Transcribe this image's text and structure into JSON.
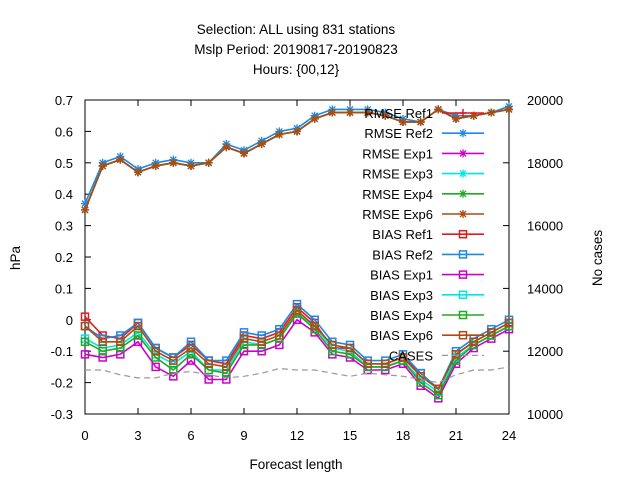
{
  "chart_data": {
    "type": "line",
    "title_lines": [
      "Selection: ALL using   831 stations",
      "Mslp   Period: 20190817-20190823",
      "Hours: {00,12}"
    ],
    "xlabel": "Forecast length",
    "ylabel": "hPa",
    "y2label": "No cases",
    "xlim": [
      0,
      24
    ],
    "ylim": [
      -0.3,
      0.7
    ],
    "y2lim": [
      10000,
      20000
    ],
    "xticks": [
      "0",
      "3",
      "6",
      "9",
      "12",
      "15",
      "18",
      "21",
      "24"
    ],
    "yticks": [
      "-0.3",
      "-0.2",
      "-0.1",
      "0",
      "0.1",
      "0.2",
      "0.3",
      "0.4",
      "0.5",
      "0.6",
      "0.7"
    ],
    "y2ticks": [
      "10000",
      "12000",
      "14000",
      "16000",
      "18000",
      "20000"
    ],
    "grid": false,
    "legend_position": "top-right",
    "x": [
      0,
      1,
      2,
      3,
      4,
      5,
      6,
      7,
      8,
      9,
      10,
      11,
      12,
      13,
      14,
      15,
      16,
      17,
      18,
      19,
      20,
      21,
      22,
      23,
      24
    ],
    "series": [
      {
        "name": "RMSE Ref1",
        "color": "#e41a1c",
        "marker": "plus",
        "axis": "y1",
        "values": [
          0.35,
          0.49,
          0.51,
          0.47,
          0.49,
          0.5,
          0.49,
          0.5,
          0.55,
          0.53,
          0.56,
          0.59,
          0.6,
          0.64,
          0.66,
          0.66,
          0.66,
          0.65,
          0.63,
          0.63,
          0.67,
          0.64,
          0.65,
          0.66,
          0.67
        ]
      },
      {
        "name": "RMSE Ref2",
        "color": "#1e88e5",
        "marker": "star",
        "axis": "y1",
        "values": [
          0.37,
          0.5,
          0.52,
          0.48,
          0.5,
          0.51,
          0.5,
          0.5,
          0.56,
          0.54,
          0.57,
          0.6,
          0.61,
          0.65,
          0.67,
          0.67,
          0.67,
          0.66,
          0.64,
          0.63,
          0.67,
          0.65,
          0.65,
          0.66,
          0.68
        ]
      },
      {
        "name": "RMSE Exp1",
        "color": "#cc00cc",
        "marker": "star",
        "axis": "y1",
        "values": [
          0.35,
          0.49,
          0.51,
          0.47,
          0.49,
          0.5,
          0.49,
          0.5,
          0.55,
          0.53,
          0.56,
          0.59,
          0.6,
          0.64,
          0.66,
          0.66,
          0.66,
          0.65,
          0.63,
          0.63,
          0.67,
          0.64,
          0.65,
          0.66,
          0.67
        ]
      },
      {
        "name": "RMSE Exp3",
        "color": "#00e5e5",
        "marker": "star",
        "axis": "y1",
        "values": [
          0.35,
          0.49,
          0.51,
          0.47,
          0.49,
          0.5,
          0.49,
          0.5,
          0.55,
          0.53,
          0.56,
          0.59,
          0.6,
          0.64,
          0.66,
          0.66,
          0.66,
          0.65,
          0.63,
          0.63,
          0.67,
          0.64,
          0.65,
          0.66,
          0.67
        ]
      },
      {
        "name": "RMSE Exp4",
        "color": "#22aa22",
        "marker": "star",
        "axis": "y1",
        "values": [
          0.35,
          0.49,
          0.51,
          0.47,
          0.49,
          0.5,
          0.49,
          0.5,
          0.55,
          0.53,
          0.56,
          0.59,
          0.6,
          0.64,
          0.66,
          0.66,
          0.66,
          0.65,
          0.63,
          0.63,
          0.67,
          0.64,
          0.65,
          0.66,
          0.67
        ]
      },
      {
        "name": "RMSE Exp6",
        "color": "#b04a10",
        "marker": "star",
        "axis": "y1",
        "values": [
          0.35,
          0.49,
          0.51,
          0.47,
          0.49,
          0.5,
          0.49,
          0.5,
          0.55,
          0.53,
          0.56,
          0.59,
          0.6,
          0.64,
          0.66,
          0.66,
          0.66,
          0.65,
          0.63,
          0.63,
          0.67,
          0.64,
          0.65,
          0.66,
          0.67
        ]
      },
      {
        "name": "BIAS Ref1",
        "color": "#e41a1c",
        "marker": "square",
        "axis": "y1",
        "values": [
          0.01,
          -0.05,
          -0.06,
          -0.01,
          -0.09,
          -0.12,
          -0.08,
          -0.13,
          -0.14,
          -0.05,
          -0.06,
          -0.04,
          0.04,
          -0.01,
          -0.09,
          -0.09,
          -0.14,
          -0.14,
          -0.12,
          -0.17,
          -0.22,
          -0.11,
          -0.07,
          -0.04,
          -0.01
        ]
      },
      {
        "name": "BIAS Ref2",
        "color": "#1e88e5",
        "marker": "square",
        "axis": "y1",
        "values": [
          -0.02,
          -0.06,
          -0.05,
          -0.01,
          -0.09,
          -0.12,
          -0.07,
          -0.13,
          -0.13,
          -0.04,
          -0.05,
          -0.03,
          0.05,
          0.0,
          -0.07,
          -0.08,
          -0.13,
          -0.13,
          -0.11,
          -0.17,
          -0.22,
          -0.1,
          -0.06,
          -0.03,
          0.0
        ]
      },
      {
        "name": "BIAS Exp1",
        "color": "#cc00cc",
        "marker": "square",
        "axis": "y1",
        "values": [
          -0.11,
          -0.12,
          -0.11,
          -0.07,
          -0.15,
          -0.18,
          -0.13,
          -0.19,
          -0.19,
          -0.1,
          -0.1,
          -0.08,
          0.0,
          -0.04,
          -0.11,
          -0.12,
          -0.16,
          -0.16,
          -0.14,
          -0.21,
          -0.25,
          -0.14,
          -0.09,
          -0.06,
          -0.03
        ]
      },
      {
        "name": "BIAS Exp3",
        "color": "#00e5e5",
        "marker": "square",
        "axis": "y1",
        "values": [
          -0.06,
          -0.09,
          -0.08,
          -0.04,
          -0.11,
          -0.14,
          -0.1,
          -0.16,
          -0.16,
          -0.07,
          -0.08,
          -0.06,
          0.02,
          -0.02,
          -0.09,
          -0.1,
          -0.15,
          -0.15,
          -0.13,
          -0.19,
          -0.23,
          -0.12,
          -0.08,
          -0.05,
          -0.02
        ]
      },
      {
        "name": "BIAS Exp4",
        "color": "#22aa22",
        "marker": "square",
        "axis": "y1",
        "values": [
          -0.07,
          -0.1,
          -0.09,
          -0.05,
          -0.12,
          -0.16,
          -0.11,
          -0.16,
          -0.17,
          -0.08,
          -0.08,
          -0.06,
          0.02,
          -0.03,
          -0.1,
          -0.11,
          -0.15,
          -0.15,
          -0.13,
          -0.2,
          -0.24,
          -0.13,
          -0.08,
          -0.05,
          -0.02
        ]
      },
      {
        "name": "BIAS Exp6",
        "color": "#b04a10",
        "marker": "square",
        "axis": "y1",
        "values": [
          -0.02,
          -0.07,
          -0.07,
          -0.02,
          -0.1,
          -0.13,
          -0.09,
          -0.14,
          -0.15,
          -0.06,
          -0.07,
          -0.05,
          0.03,
          -0.02,
          -0.08,
          -0.09,
          -0.14,
          -0.14,
          -0.12,
          -0.18,
          -0.22,
          -0.11,
          -0.07,
          -0.04,
          -0.01
        ]
      },
      {
        "name": "CASES",
        "color": "#999999",
        "marker": "none",
        "dash": "dash",
        "axis": "y2",
        "values": [
          11400,
          11400,
          11250,
          11150,
          11150,
          11300,
          11350,
          11250,
          11150,
          11200,
          11300,
          11450,
          11400,
          11400,
          11300,
          11200,
          11300,
          11250,
          11200,
          11100,
          11000,
          11250,
          11400,
          11400,
          11500
        ]
      }
    ]
  }
}
